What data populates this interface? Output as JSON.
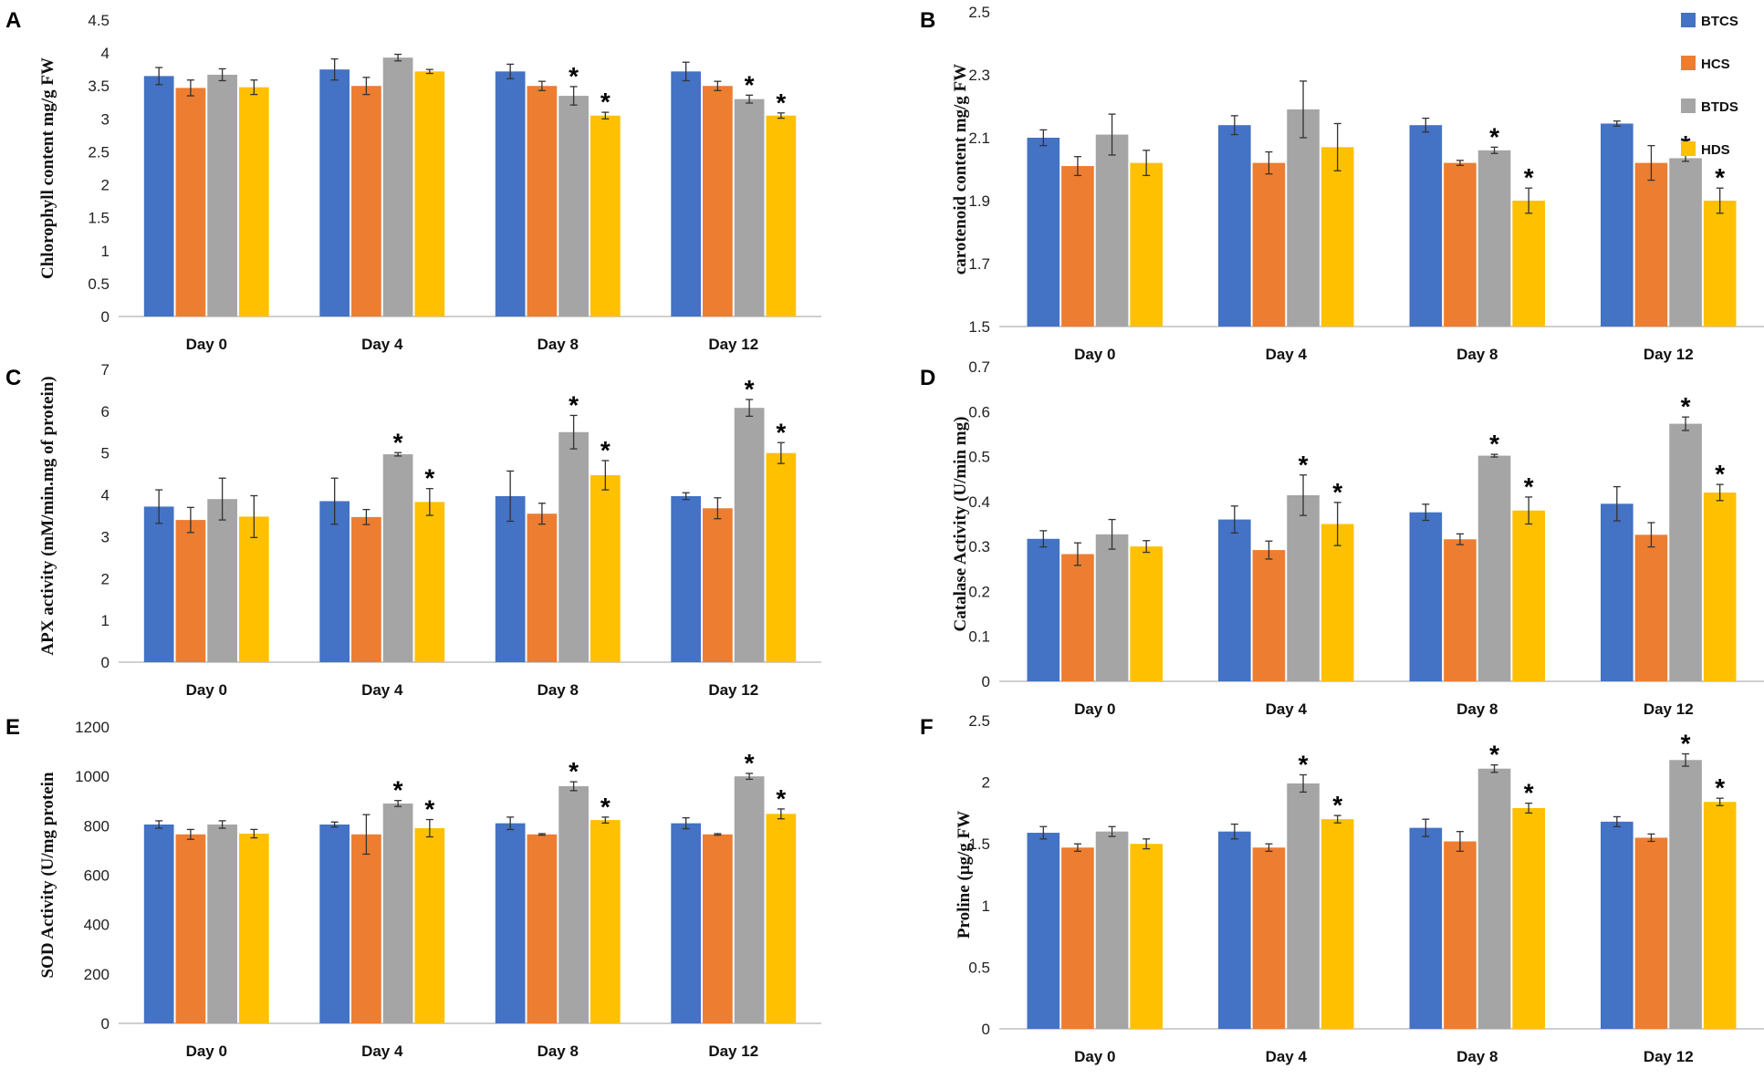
{
  "colors": {
    "BTCS": "#4472C4",
    "HCS": "#ED7D31",
    "BTDS": "#A5A5A5",
    "HDS": "#FFC000"
  },
  "legend": [
    "BTCS",
    "HCS",
    "BTDS",
    "HDS"
  ],
  "chart_data": [
    {
      "panel": "A",
      "type": "bar",
      "ylabel": "Chlorophyll content mg/g FW",
      "ylim": [
        0,
        4.5
      ],
      "yticks": [
        "0",
        "0.5",
        "1",
        "1.5",
        "2",
        "2.5",
        "3",
        "3.5",
        "4",
        "4.5"
      ],
      "categories": [
        "Day 0",
        "Day 4",
        "Day 8",
        "Day 12"
      ],
      "series": [
        {
          "name": "BTCS",
          "values": [
            3.65,
            3.75,
            3.72,
            3.72
          ],
          "errors": [
            0.13,
            0.16,
            0.11,
            0.14
          ],
          "sig": [
            false,
            false,
            false,
            false
          ]
        },
        {
          "name": "HCS",
          "values": [
            3.47,
            3.5,
            3.5,
            3.5
          ],
          "errors": [
            0.12,
            0.13,
            0.07,
            0.07
          ],
          "sig": [
            false,
            false,
            false,
            false
          ]
        },
        {
          "name": "BTDS",
          "values": [
            3.67,
            3.93,
            3.35,
            3.3
          ],
          "errors": [
            0.09,
            0.05,
            0.14,
            0.06
          ],
          "sig": [
            false,
            false,
            true,
            true
          ]
        },
        {
          "name": "HDS",
          "values": [
            3.48,
            3.72,
            3.05,
            3.05
          ],
          "errors": [
            0.11,
            0.03,
            0.05,
            0.04
          ],
          "sig": [
            false,
            false,
            true,
            true
          ]
        }
      ]
    },
    {
      "panel": "B",
      "type": "bar",
      "ylabel": "carotenoid content mg/g FW",
      "ylim": [
        1.5,
        2.5
      ],
      "yticks": [
        "1.5",
        "1.7",
        "1.9",
        "2.1",
        "2.3",
        "2.5"
      ],
      "categories": [
        "Day 0",
        "Day 4",
        "Day 8",
        "Day 12"
      ],
      "series": [
        {
          "name": "BTCS",
          "values": [
            2.1,
            2.14,
            2.14,
            2.145
          ],
          "errors": [
            0.025,
            0.03,
            0.022,
            0.008
          ],
          "sig": [
            false,
            false,
            false,
            false
          ]
        },
        {
          "name": "HCS",
          "values": [
            2.01,
            2.02,
            2.02,
            2.02
          ],
          "errors": [
            0.03,
            0.035,
            0.008,
            0.055
          ],
          "sig": [
            false,
            false,
            false,
            false
          ]
        },
        {
          "name": "BTDS",
          "values": [
            2.11,
            2.19,
            2.06,
            2.035
          ],
          "errors": [
            0.065,
            0.09,
            0.01,
            0.01
          ],
          "sig": [
            false,
            false,
            true,
            true
          ]
        },
        {
          "name": "HDS",
          "values": [
            2.02,
            2.07,
            1.9,
            1.9
          ],
          "errors": [
            0.04,
            0.075,
            0.04,
            0.04
          ],
          "sig": [
            false,
            false,
            true,
            true
          ]
        }
      ]
    },
    {
      "panel": "C",
      "type": "bar",
      "ylabel": "APX activity (mM/min.mg of protein)",
      "ylim": [
        0,
        7
      ],
      "yticks": [
        "0",
        "1",
        "2",
        "3",
        "4",
        "5",
        "6",
        "7"
      ],
      "categories": [
        "Day 0",
        "Day 4",
        "Day 8",
        "Day 12"
      ],
      "series": [
        {
          "name": "BTCS",
          "values": [
            3.72,
            3.85,
            3.97,
            3.97
          ],
          "errors": [
            0.4,
            0.55,
            0.6,
            0.08
          ],
          "sig": [
            false,
            false,
            false,
            false
          ]
        },
        {
          "name": "HCS",
          "values": [
            3.4,
            3.47,
            3.55,
            3.68
          ],
          "errors": [
            0.3,
            0.18,
            0.25,
            0.25
          ],
          "sig": [
            false,
            false,
            false,
            false
          ]
        },
        {
          "name": "BTDS",
          "values": [
            3.9,
            4.97,
            5.5,
            6.08
          ],
          "errors": [
            0.5,
            0.04,
            0.4,
            0.2
          ],
          "sig": [
            false,
            true,
            true,
            true
          ]
        },
        {
          "name": "HDS",
          "values": [
            3.48,
            3.83,
            4.47,
            5.0
          ],
          "errors": [
            0.5,
            0.32,
            0.35,
            0.25
          ],
          "sig": [
            false,
            true,
            true,
            true
          ]
        }
      ]
    },
    {
      "panel": "D",
      "type": "bar",
      "ylabel": "Catalase Activity (U/min mg)",
      "ylim": [
        0,
        0.7
      ],
      "yticks": [
        "0",
        "0.1",
        "0.2",
        "0.3",
        "0.4",
        "0.5",
        "0.6",
        "0.7"
      ],
      "categories": [
        "Day 0",
        "Day 4",
        "Day 8",
        "Day 12"
      ],
      "series": [
        {
          "name": "BTCS",
          "values": [
            0.317,
            0.36,
            0.376,
            0.395
          ],
          "errors": [
            0.018,
            0.03,
            0.018,
            0.038
          ],
          "sig": [
            false,
            false,
            false,
            false
          ]
        },
        {
          "name": "HCS",
          "values": [
            0.283,
            0.292,
            0.316,
            0.326
          ],
          "errors": [
            0.025,
            0.02,
            0.012,
            0.027
          ],
          "sig": [
            false,
            false,
            false,
            false
          ]
        },
        {
          "name": "BTDS",
          "values": [
            0.327,
            0.414,
            0.502,
            0.573
          ],
          "errors": [
            0.033,
            0.045,
            0.003,
            0.015
          ],
          "sig": [
            false,
            true,
            true,
            true
          ]
        },
        {
          "name": "HDS",
          "values": [
            0.3,
            0.35,
            0.38,
            0.42
          ],
          "errors": [
            0.013,
            0.048,
            0.03,
            0.018
          ],
          "sig": [
            false,
            true,
            true,
            true
          ]
        }
      ]
    },
    {
      "panel": "E",
      "type": "bar",
      "ylabel": "SOD Activity (U/mg protein",
      "ylim": [
        0,
        1200
      ],
      "yticks": [
        "0",
        "200",
        "400",
        "600",
        "800",
        "1000",
        "1200"
      ],
      "categories": [
        "Day 0",
        "Day 4",
        "Day 8",
        "Day 12"
      ],
      "series": [
        {
          "name": "BTCS",
          "values": [
            805,
            805,
            810,
            810
          ],
          "errors": [
            15,
            10,
            25,
            22
          ],
          "sig": [
            false,
            false,
            false,
            false
          ]
        },
        {
          "name": "HCS",
          "values": [
            765,
            765,
            765,
            765
          ],
          "errors": [
            20,
            80,
            3,
            3
          ],
          "sig": [
            false,
            false,
            false,
            false
          ]
        },
        {
          "name": "BTDS",
          "values": [
            805,
            890,
            960,
            1000
          ],
          "errors": [
            15,
            12,
            18,
            12
          ],
          "sig": [
            false,
            true,
            true,
            true
          ]
        },
        {
          "name": "HDS",
          "values": [
            768,
            790,
            823,
            848
          ],
          "errors": [
            17,
            35,
            12,
            20
          ],
          "sig": [
            false,
            true,
            true,
            true
          ]
        }
      ]
    },
    {
      "panel": "F",
      "type": "bar",
      "ylabel": "Proline (μg/g FW",
      "ylim": [
        0,
        2.5
      ],
      "yticks": [
        "0",
        "0.5",
        "1",
        "1.5",
        "2",
        "2.5"
      ],
      "categories": [
        "Day 0",
        "Day 4",
        "Day 8",
        "Day 12"
      ],
      "series": [
        {
          "name": "BTCS",
          "values": [
            1.59,
            1.6,
            1.63,
            1.68
          ],
          "errors": [
            0.05,
            0.06,
            0.07,
            0.04
          ],
          "sig": [
            false,
            false,
            false,
            false
          ]
        },
        {
          "name": "HCS",
          "values": [
            1.47,
            1.47,
            1.52,
            1.55
          ],
          "errors": [
            0.03,
            0.03,
            0.08,
            0.03
          ],
          "sig": [
            false,
            false,
            false,
            false
          ]
        },
        {
          "name": "BTDS",
          "values": [
            1.6,
            1.99,
            2.11,
            2.18
          ],
          "errors": [
            0.04,
            0.07,
            0.03,
            0.05
          ],
          "sig": [
            false,
            true,
            true,
            true
          ]
        },
        {
          "name": "HDS",
          "values": [
            1.5,
            1.7,
            1.79,
            1.84
          ],
          "errors": [
            0.04,
            0.03,
            0.04,
            0.03
          ],
          "sig": [
            false,
            true,
            true,
            true
          ]
        }
      ]
    }
  ]
}
